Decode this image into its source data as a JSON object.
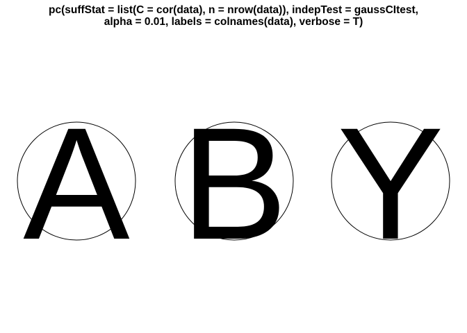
{
  "title": {
    "line1": "pc(suffStat = list(C = cor(data), n = nrow(data)), indepTest = gaussCItest,",
    "line2": "alpha = 0.01, labels = colnames(data), verbose = T)"
  },
  "graph": {
    "nodes": [
      {
        "id": "A",
        "label": "A"
      },
      {
        "id": "B",
        "label": "B"
      },
      {
        "id": "Y",
        "label": "Y"
      }
    ],
    "edges": []
  },
  "colors": {
    "background": "#ffffff",
    "stroke": "#000000",
    "text": "#000000"
  }
}
